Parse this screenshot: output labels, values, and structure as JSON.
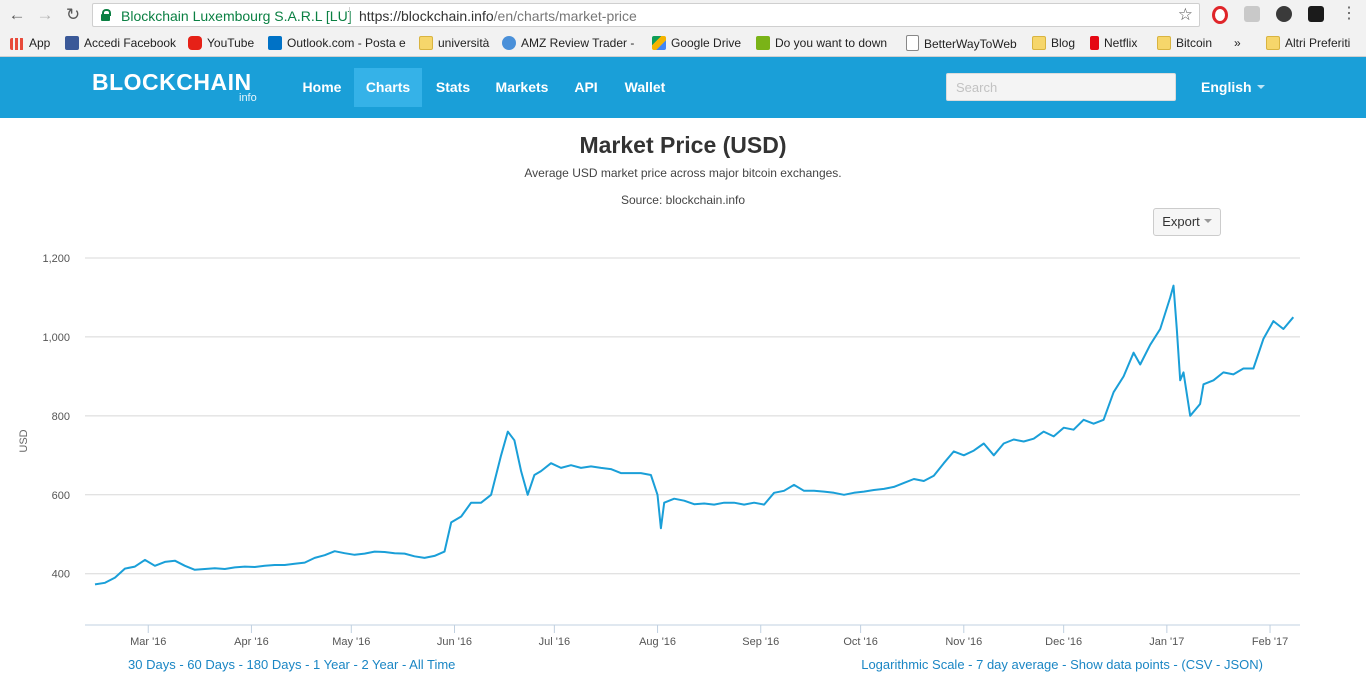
{
  "browser": {
    "security_name": "Blockchain Luxembourg S.A.R.L [LU]",
    "url_host": "https://blockchain.info",
    "url_path": "/en/charts/market-price",
    "bookmarks": [
      {
        "label": "App",
        "icon": "apps-grid-icon"
      },
      {
        "label": "Accedi Facebook",
        "icon": "facebook-icon"
      },
      {
        "label": "YouTube",
        "icon": "youtube-icon"
      },
      {
        "label": "Outlook.com - Posta e",
        "icon": "outlook-icon"
      },
      {
        "label": "università",
        "icon": "folder-icon"
      },
      {
        "label": "AMZ Review Trader -",
        "icon": "refresh-icon"
      },
      {
        "label": "Google Drive",
        "icon": "drive-icon"
      },
      {
        "label": "Do you want to down",
        "icon": "download-icon"
      },
      {
        "label": "BetterWayToWeb",
        "icon": "page-icon"
      },
      {
        "label": "Blog",
        "icon": "folder-icon"
      },
      {
        "label": "Netflix",
        "icon": "netflix-icon"
      },
      {
        "label": "Bitcoin",
        "icon": "folder-icon"
      },
      {
        "label": "»",
        "icon": ""
      },
      {
        "label": "Altri Preferiti",
        "icon": "folder-icon"
      }
    ]
  },
  "site": {
    "logo": "BLOCKCHAIN",
    "logo_sub": "info",
    "nav": [
      "Home",
      "Charts",
      "Stats",
      "Markets",
      "API",
      "Wallet"
    ],
    "active_nav": "Charts",
    "search_placeholder": "Search",
    "language": "English",
    "accent": "#1a9fd8"
  },
  "chart_page": {
    "export_label": "Export",
    "footer_left": [
      "30 Days",
      "60 Days",
      "180 Days",
      "1 Year",
      "2 Year",
      "All Time"
    ],
    "footer_right_parts": [
      "Logarithmic Scale",
      "7 day average",
      "Show data points"
    ],
    "footer_right_tail": "(CSV - JSON)"
  },
  "chart_data": {
    "type": "line",
    "title": "Market Price (USD)",
    "subtitle": "Average USD market price across major bitcoin exchanges.",
    "source": "Source: blockchain.info",
    "ylabel": "USD",
    "xlabel": "",
    "ylim": [
      270,
      1200
    ],
    "yticks": [
      400,
      600,
      800,
      1000,
      1200
    ],
    "ytick_labels": [
      "400",
      "600",
      "800",
      "1,000",
      "1,200"
    ],
    "xlim": [
      "2016-02-11",
      "2017-02-10"
    ],
    "xticks": [
      "2016-03-01",
      "2016-04-01",
      "2016-05-01",
      "2016-06-01",
      "2016-07-01",
      "2016-08-01",
      "2016-09-01",
      "2016-10-01",
      "2016-11-01",
      "2016-12-01",
      "2017-01-01",
      "2017-02-01"
    ],
    "xtick_labels": [
      "Mar '16",
      "Apr '16",
      "May '16",
      "Jun '16",
      "Jul '16",
      "Aug '16",
      "Sep '16",
      "Oct '16",
      "Nov '16",
      "Dec '16",
      "Jan '17",
      "Feb '17"
    ],
    "grid": true,
    "legend": "none",
    "color": "#1a9fd8",
    "series": [
      {
        "x": [
          "2016-02-14",
          "2016-02-17",
          "2016-02-20",
          "2016-02-23",
          "2016-02-26",
          "2016-02-29",
          "2016-03-03",
          "2016-03-06",
          "2016-03-09",
          "2016-03-12",
          "2016-03-15",
          "2016-03-18",
          "2016-03-21",
          "2016-03-24",
          "2016-03-27",
          "2016-03-30",
          "2016-04-02",
          "2016-04-05",
          "2016-04-08",
          "2016-04-11",
          "2016-04-14",
          "2016-04-17",
          "2016-04-20",
          "2016-04-23",
          "2016-04-26",
          "2016-04-29",
          "2016-05-02",
          "2016-05-05",
          "2016-05-08",
          "2016-05-11",
          "2016-05-14",
          "2016-05-17",
          "2016-05-20",
          "2016-05-23",
          "2016-05-26",
          "2016-05-29",
          "2016-05-31",
          "2016-06-03",
          "2016-06-06",
          "2016-06-09",
          "2016-06-12",
          "2016-06-15",
          "2016-06-17",
          "2016-06-19",
          "2016-06-21",
          "2016-06-23",
          "2016-06-25",
          "2016-06-27",
          "2016-06-30",
          "2016-07-03",
          "2016-07-06",
          "2016-07-09",
          "2016-07-12",
          "2016-07-15",
          "2016-07-18",
          "2016-07-21",
          "2016-07-24",
          "2016-07-27",
          "2016-07-30",
          "2016-08-01",
          "2016-08-02",
          "2016-08-03",
          "2016-08-06",
          "2016-08-09",
          "2016-08-12",
          "2016-08-15",
          "2016-08-18",
          "2016-08-21",
          "2016-08-24",
          "2016-08-27",
          "2016-08-30",
          "2016-09-02",
          "2016-09-05",
          "2016-09-08",
          "2016-09-11",
          "2016-09-14",
          "2016-09-17",
          "2016-09-20",
          "2016-09-23",
          "2016-09-26",
          "2016-09-29",
          "2016-10-02",
          "2016-10-05",
          "2016-10-08",
          "2016-10-11",
          "2016-10-14",
          "2016-10-17",
          "2016-10-20",
          "2016-10-23",
          "2016-10-26",
          "2016-10-29",
          "2016-11-01",
          "2016-11-04",
          "2016-11-07",
          "2016-11-10",
          "2016-11-13",
          "2016-11-16",
          "2016-11-19",
          "2016-11-22",
          "2016-11-25",
          "2016-11-28",
          "2016-12-01",
          "2016-12-04",
          "2016-12-07",
          "2016-12-10",
          "2016-12-13",
          "2016-12-16",
          "2016-12-19",
          "2016-12-22",
          "2016-12-24",
          "2016-12-27",
          "2016-12-30",
          "2017-01-02",
          "2017-01-03",
          "2017-01-04",
          "2017-01-05",
          "2017-01-06",
          "2017-01-08",
          "2017-01-11",
          "2017-01-12",
          "2017-01-15",
          "2017-01-18",
          "2017-01-21",
          "2017-01-24",
          "2017-01-27",
          "2017-01-30",
          "2017-02-02",
          "2017-02-05",
          "2017-02-08"
        ],
        "y": [
          373,
          377,
          390,
          413,
          418,
          435,
          420,
          430,
          433,
          420,
          410,
          412,
          414,
          412,
          416,
          418,
          417,
          420,
          422,
          422,
          425,
          428,
          440,
          447,
          457,
          452,
          448,
          451,
          456,
          455,
          452,
          451,
          444,
          440,
          445,
          456,
          530,
          545,
          580,
          580,
          600,
          700,
          760,
          738,
          660,
          600,
          650,
          660,
          680,
          668,
          675,
          668,
          672,
          668,
          665,
          655,
          655,
          655,
          650,
          600,
          515,
          580,
          590,
          585,
          576,
          578,
          575,
          580,
          580,
          575,
          580,
          575,
          605,
          610,
          625,
          610,
          610,
          608,
          605,
          600,
          605,
          608,
          612,
          615,
          620,
          630,
          640,
          635,
          648,
          680,
          710,
          700,
          712,
          730,
          700,
          730,
          740,
          735,
          742,
          760,
          748,
          770,
          765,
          790,
          780,
          790,
          860,
          900,
          960,
          930,
          980,
          1020,
          1100,
          1130,
          1020,
          890,
          910,
          800,
          830,
          880,
          890,
          910,
          905,
          920,
          920,
          995,
          1040,
          1020,
          1050
        ]
      }
    ]
  }
}
